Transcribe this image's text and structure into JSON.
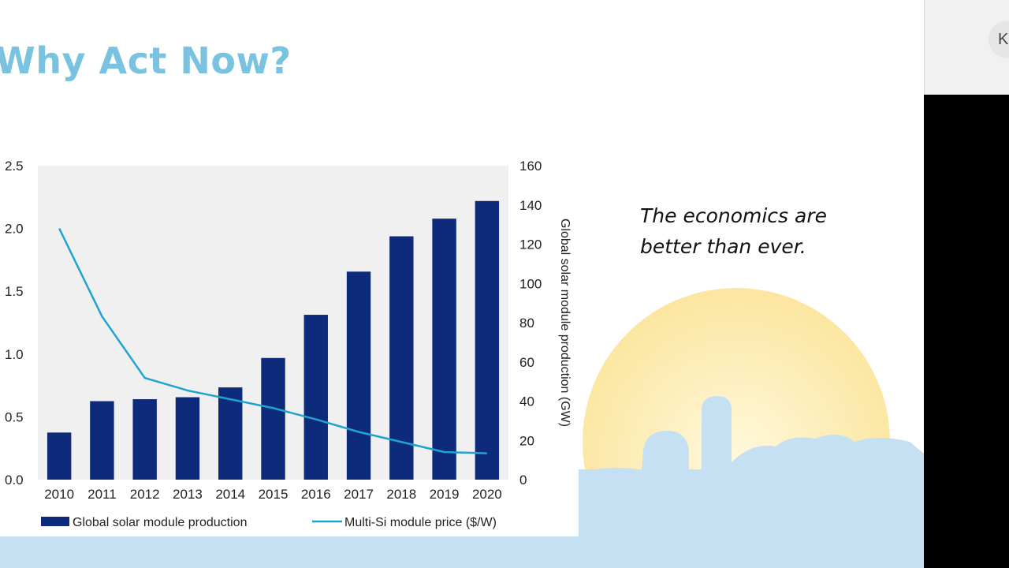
{
  "slide": {
    "title": "Why Act Now?",
    "tagline_line1": "The economics are",
    "tagline_line2": "better than ever."
  },
  "side_panel": {
    "participant_initial": "K"
  },
  "colors": {
    "title": "#79c3e0",
    "bar": "#0d2b7a",
    "line": "#1fa3d1",
    "plot_bg": "#f0f0f0",
    "sun": "#fbe49a",
    "skyline": "#c5e0f2"
  },
  "chart_data": {
    "type": "bar",
    "categories": [
      "2010",
      "2011",
      "2012",
      "2013",
      "2014",
      "2015",
      "2016",
      "2017",
      "2018",
      "2019",
      "2020"
    ],
    "series": [
      {
        "name": "Global solar module production",
        "kind": "bar",
        "axis": "right",
        "values": [
          24,
          40,
          41,
          42,
          47,
          62,
          84,
          106,
          124,
          133,
          142
        ]
      },
      {
        "name": "Multi-Si module price ($/W)",
        "kind": "line",
        "axis": "left",
        "values": [
          2.0,
          1.3,
          0.81,
          0.71,
          0.64,
          0.57,
          0.48,
          0.38,
          0.3,
          0.22,
          0.21
        ]
      }
    ],
    "y_left": {
      "ylim": [
        0,
        2.5
      ],
      "ticks": [
        "0.0",
        "0.5",
        "1.0",
        "1.5",
        "2.0",
        "2.5"
      ]
    },
    "y_right": {
      "label": "Global solar module production (GW)",
      "ylim": [
        0,
        160
      ],
      "ticks": [
        "0",
        "20",
        "40",
        "60",
        "80",
        "100",
        "120",
        "140",
        "160"
      ]
    },
    "legend": {
      "placement": "bottom"
    },
    "grid": false
  }
}
